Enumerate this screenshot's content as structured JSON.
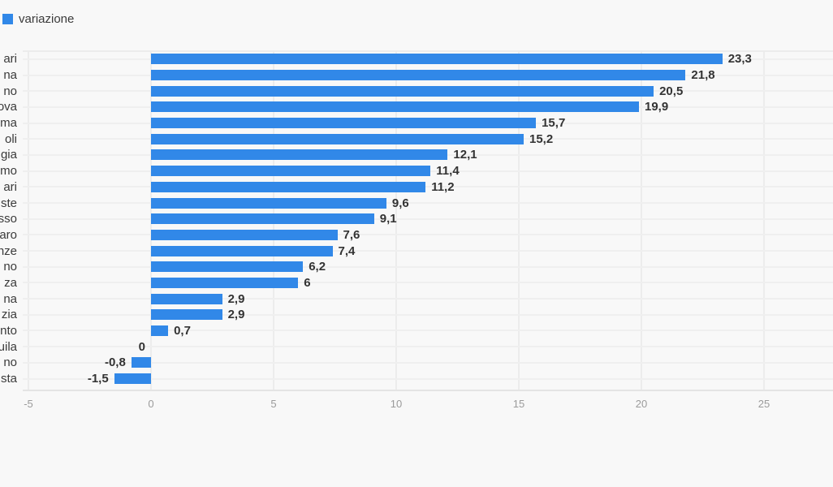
{
  "legend": {
    "label": "variazione",
    "swatch_color": "#3188e8"
  },
  "chart_data": {
    "type": "bar",
    "orientation": "horizontal",
    "title": "",
    "series_name": "variazione",
    "bar_color": "#3188e8",
    "categories": [
      "ari",
      "na",
      "no",
      "ova",
      "ma",
      "oli",
      "gia",
      "mo",
      "ari",
      "ste",
      "sso",
      "aro",
      "nze",
      "no",
      "za",
      "na",
      "zia",
      "nto",
      "uila",
      "no",
      "sta"
    ],
    "values": [
      23.3,
      21.8,
      20.5,
      19.9,
      15.7,
      15.2,
      12.1,
      11.4,
      11.2,
      9.6,
      9.1,
      7.6,
      7.4,
      6.2,
      6,
      2.9,
      2.9,
      0.7,
      0,
      -0.8,
      -1.5
    ],
    "value_labels": [
      "23,3",
      "21,8",
      "20,5",
      "19,9",
      "15,7",
      "15,2",
      "12,1",
      "11,4",
      "11,2",
      "9,6",
      "9,1",
      "7,6",
      "7,4",
      "6,2",
      "6",
      "2,9",
      "2,9",
      "0,7",
      "0",
      "-0,8",
      "-1,5"
    ],
    "x_ticks": [
      -5,
      0,
      5,
      10,
      15,
      20,
      25
    ],
    "x_tick_labels": [
      "-5",
      "0",
      "5",
      "10",
      "15",
      "20",
      "25"
    ],
    "xlim": [
      -5,
      27.8
    ],
    "decimal_separator": ",",
    "grid": true,
    "legend_position": "top-left",
    "category_labels_clipped_at_left_edge": true
  },
  "colors": {
    "background": "#f8f8f8",
    "bar": "#3188e8",
    "gridline": "#ececec",
    "axis_baseline": "#e4e4e4",
    "value_text": "#333333",
    "category_text": "#3a3a3a",
    "tick_text": "#9b9b9b"
  }
}
